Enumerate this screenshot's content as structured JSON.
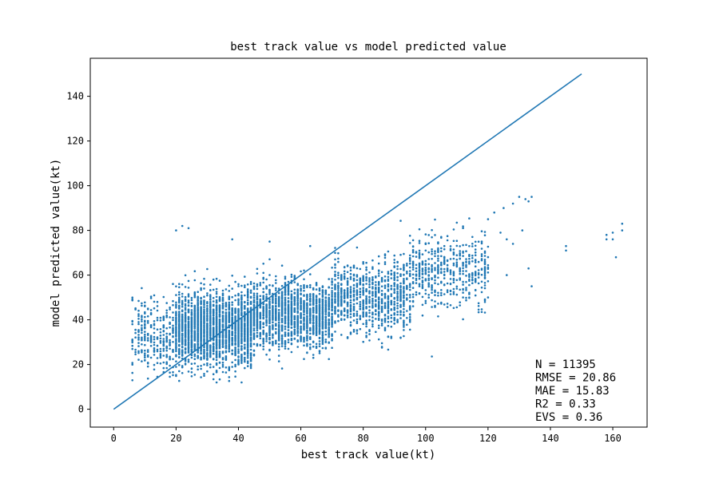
{
  "chart_data": {
    "type": "scatter",
    "title": "best track value vs model predicted value",
    "xlabel": "best track value(kt)",
    "ylabel": "model predicted value(kt)",
    "xlim": [
      -7.5,
      171
    ],
    "ylim": [
      -8,
      157
    ],
    "x_ticks": [
      0,
      20,
      40,
      60,
      80,
      100,
      120,
      140,
      160
    ],
    "y_ticks": [
      0,
      20,
      40,
      60,
      80,
      100,
      120,
      140
    ],
    "grid": false,
    "series": [
      {
        "kind": "scatter",
        "color": "#1f77b4",
        "clusters": [
          {
            "x_range": [
              6,
              20
            ],
            "y_mean": 33,
            "y_sd": 8,
            "count": 300
          },
          {
            "x_range": [
              20,
              45
            ],
            "y_mean": 36,
            "y_sd": 8,
            "count": 2300
          },
          {
            "x_range": [
              45,
              70
            ],
            "y_mean": 42,
            "y_sd": 7,
            "count": 1500
          },
          {
            "x_range": [
              70,
              95
            ],
            "y_mean": 50,
            "y_sd": 8,
            "count": 900
          },
          {
            "x_range": [
              95,
              120
            ],
            "y_mean": 62,
            "y_sd": 8,
            "count": 500
          }
        ],
        "points": [
          [
            120,
            85
          ],
          [
            122,
            88
          ],
          [
            125,
            90
          ],
          [
            128,
            92
          ],
          [
            130,
            95
          ],
          [
            132,
            94
          ],
          [
            133,
            93
          ],
          [
            134,
            95
          ],
          [
            124,
            79
          ],
          [
            126,
            76
          ],
          [
            131,
            80
          ],
          [
            133,
            63
          ],
          [
            134,
            55
          ],
          [
            128,
            74
          ],
          [
            126,
            60
          ],
          [
            145,
            71
          ],
          [
            145,
            73
          ],
          [
            158,
            76
          ],
          [
            158,
            78
          ],
          [
            160,
            79
          ],
          [
            160,
            76
          ],
          [
            161,
            68
          ],
          [
            163,
            80
          ],
          [
            163,
            83
          ],
          [
            20,
            80
          ],
          [
            22,
            82
          ],
          [
            24,
            81
          ],
          [
            38,
            76
          ],
          [
            50,
            75
          ],
          [
            63,
            73
          ]
        ]
      },
      {
        "kind": "line",
        "name": "",
        "color": "#1f77b4",
        "x": [
          0,
          150
        ],
        "y": [
          0,
          150
        ]
      }
    ],
    "annotations": [
      "N = 11395",
      "RMSE = 20.86",
      "MAE = 15.83",
      "R2 = 0.33",
      "EVS = 0.36"
    ]
  }
}
